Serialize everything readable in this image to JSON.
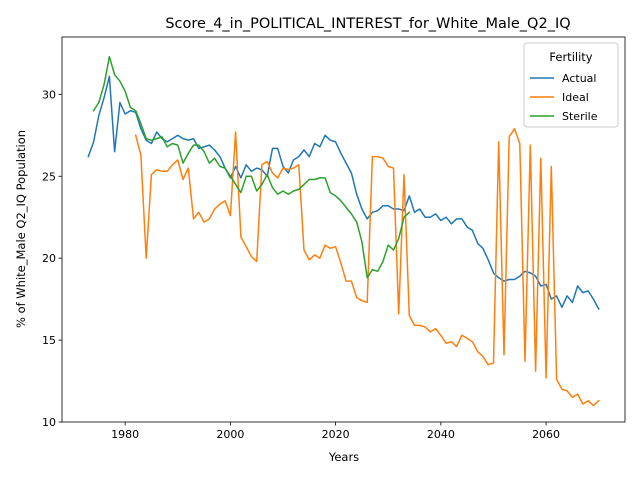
{
  "chart_data": {
    "type": "line",
    "title": "Score_4_in_POLITICAL_INTEREST_for_White_Male_Q2_IQ",
    "xlabel": "Years",
    "ylabel": "% of White_Male Q2_IQ Population",
    "xlim": [
      1968,
      2075
    ],
    "ylim": [
      10,
      33.5
    ],
    "xticks": [
      1980,
      2000,
      2020,
      2040,
      2060
    ],
    "yticks": [
      10,
      15,
      20,
      25,
      30
    ],
    "grid": false,
    "legend": {
      "title": "Fertility",
      "position": "top-right"
    },
    "series": [
      {
        "name": "Actual",
        "color": "#1f77b4",
        "x": [
          1973,
          1974,
          1975,
          1976,
          1977,
          1978,
          1979,
          1980,
          1981,
          1982,
          1983,
          1984,
          1985,
          1986,
          1987,
          1988,
          1989,
          1990,
          1991,
          1992,
          1993,
          1994,
          1995,
          1996,
          1997,
          1998,
          1999,
          2000,
          2001,
          2002,
          2003,
          2004,
          2005,
          2006,
          2007,
          2008,
          2009,
          2010,
          2011,
          2012,
          2013,
          2014,
          2015,
          2016,
          2017,
          2018,
          2019,
          2020,
          2021,
          2022,
          2023,
          2024,
          2025,
          2026,
          2027,
          2028,
          2029,
          2030,
          2031,
          2032,
          2033,
          2034,
          2035,
          2036,
          2037,
          2038,
          2039,
          2040,
          2041,
          2042,
          2043,
          2044,
          2045,
          2046,
          2047,
          2048,
          2049,
          2050,
          2051,
          2052,
          2053,
          2054,
          2055,
          2056,
          2057,
          2058,
          2059,
          2060,
          2061,
          2062,
          2063,
          2064,
          2065,
          2066,
          2067,
          2068,
          2069,
          2070
        ],
        "values": [
          26.2,
          27.1,
          28.7,
          29.8,
          31.1,
          26.5,
          29.5,
          28.8,
          29.0,
          28.9,
          27.9,
          27.2,
          27.0,
          27.7,
          27.3,
          27.1,
          27.3,
          27.5,
          27.3,
          27.2,
          27.3,
          26.7,
          26.8,
          26.9,
          26.6,
          26.2,
          25.5,
          24.9,
          25.6,
          24.9,
          25.7,
          25.3,
          25.5,
          25.4,
          25.0,
          26.7,
          26.7,
          25.6,
          25.2,
          26.0,
          26.2,
          26.6,
          26.2,
          27.0,
          26.8,
          27.5,
          27.2,
          27.1,
          26.4,
          25.8,
          25.2,
          23.9,
          23.0,
          22.4,
          22.8,
          22.9,
          23.2,
          23.2,
          23.0,
          23.0,
          22.9,
          23.8,
          22.8,
          23.0,
          22.5,
          22.5,
          22.7,
          22.3,
          22.5,
          22.1,
          22.4,
          22.4,
          21.9,
          21.7,
          20.9,
          20.6,
          19.9,
          19.1,
          18.8,
          18.6,
          18.7,
          18.7,
          18.9,
          19.2,
          19.1,
          18.9,
          18.3,
          18.4,
          17.5,
          17.7,
          17.0,
          17.7,
          17.3,
          18.3,
          17.9,
          18.0,
          17.5,
          16.9
        ]
      },
      {
        "name": "Ideal",
        "color": "#ff7f0e",
        "x": [
          1982,
          1983,
          1984,
          1985,
          1986,
          1987,
          1988,
          1989,
          1990,
          1991,
          1992,
          1993,
          1994,
          1995,
          1996,
          1997,
          1998,
          1999,
          2000,
          2001,
          2002,
          2003,
          2004,
          2005,
          2006,
          2007,
          2008,
          2009,
          2010,
          2011,
          2012,
          2013,
          2014,
          2015,
          2016,
          2017,
          2018,
          2019,
          2020,
          2021,
          2022,
          2023,
          2024,
          2025,
          2026,
          2027,
          2028,
          2029,
          2030,
          2031,
          2032,
          2033,
          2034,
          2035,
          2036,
          2037,
          2038,
          2039,
          2040,
          2041,
          2042,
          2043,
          2044,
          2045,
          2046,
          2047,
          2048,
          2049,
          2050,
          2051,
          2052,
          2053,
          2054,
          2055,
          2056,
          2057,
          2058,
          2059,
          2060,
          2061,
          2062,
          2063,
          2064,
          2065,
          2066,
          2067,
          2068,
          2069,
          2070
        ],
        "values": [
          27.5,
          26.3,
          20.0,
          25.1,
          25.4,
          25.3,
          25.3,
          25.7,
          26.0,
          24.8,
          25.5,
          22.4,
          22.8,
          22.2,
          22.4,
          23.0,
          23.3,
          23.5,
          22.6,
          27.7,
          21.3,
          20.7,
          20.1,
          19.8,
          25.7,
          25.9,
          25.2,
          24.9,
          25.5,
          25.4,
          25.5,
          25.7,
          20.5,
          19.9,
          20.2,
          20.0,
          20.8,
          20.6,
          20.7,
          19.7,
          18.6,
          18.6,
          17.6,
          17.4,
          17.3,
          26.2,
          26.2,
          26.1,
          25.6,
          25.5,
          16.6,
          25.1,
          16.5,
          15.9,
          15.9,
          15.8,
          15.5,
          15.7,
          15.3,
          14.8,
          14.9,
          14.6,
          15.3,
          15.1,
          14.9,
          14.3,
          14.0,
          13.5,
          13.6,
          27.1,
          14.1,
          27.4,
          27.9,
          27.0,
          13.7,
          26.9,
          13.1,
          26.1,
          12.7,
          25.6,
          12.6,
          12.0,
          11.9,
          11.5,
          11.7,
          11.1,
          11.3,
          11.0,
          11.3
        ]
      },
      {
        "name": "Sterile",
        "color": "#2ca02c",
        "x": [
          1974,
          1975,
          1976,
          1977,
          1978,
          1979,
          1980,
          1981,
          1982,
          1983,
          1984,
          1985,
          1986,
          1987,
          1988,
          1989,
          1990,
          1991,
          1992,
          1993,
          1994,
          1995,
          1996,
          1997,
          1998,
          1999,
          2000,
          2001,
          2002,
          2003,
          2004,
          2005,
          2006,
          2007,
          2008,
          2009,
          2010,
          2011,
          2012,
          2013,
          2014,
          2015,
          2016,
          2017,
          2018,
          2019,
          2020,
          2021,
          2022,
          2023,
          2024,
          2025,
          2026,
          2027,
          2028,
          2029,
          2030,
          2031,
          2032,
          2033,
          2034
        ],
        "values": [
          29.0,
          29.5,
          30.6,
          32.3,
          31.2,
          30.8,
          30.2,
          29.2,
          29.0,
          28.2,
          27.3,
          27.2,
          27.3,
          27.4,
          26.8,
          27.0,
          26.9,
          25.8,
          26.4,
          26.9,
          26.9,
          26.5,
          25.8,
          26.1,
          25.6,
          25.5,
          25.0,
          24.5,
          24.0,
          25.0,
          25.0,
          24.1,
          24.5,
          25.1,
          24.3,
          23.9,
          24.1,
          23.9,
          24.1,
          24.2,
          24.5,
          24.8,
          24.8,
          24.9,
          24.9,
          24.0,
          23.8,
          23.5,
          23.1,
          22.7,
          22.2,
          21.0,
          18.8,
          19.3,
          19.2,
          19.8,
          20.8,
          20.5,
          21.2,
          22.5,
          22.8
        ]
      }
    ]
  }
}
